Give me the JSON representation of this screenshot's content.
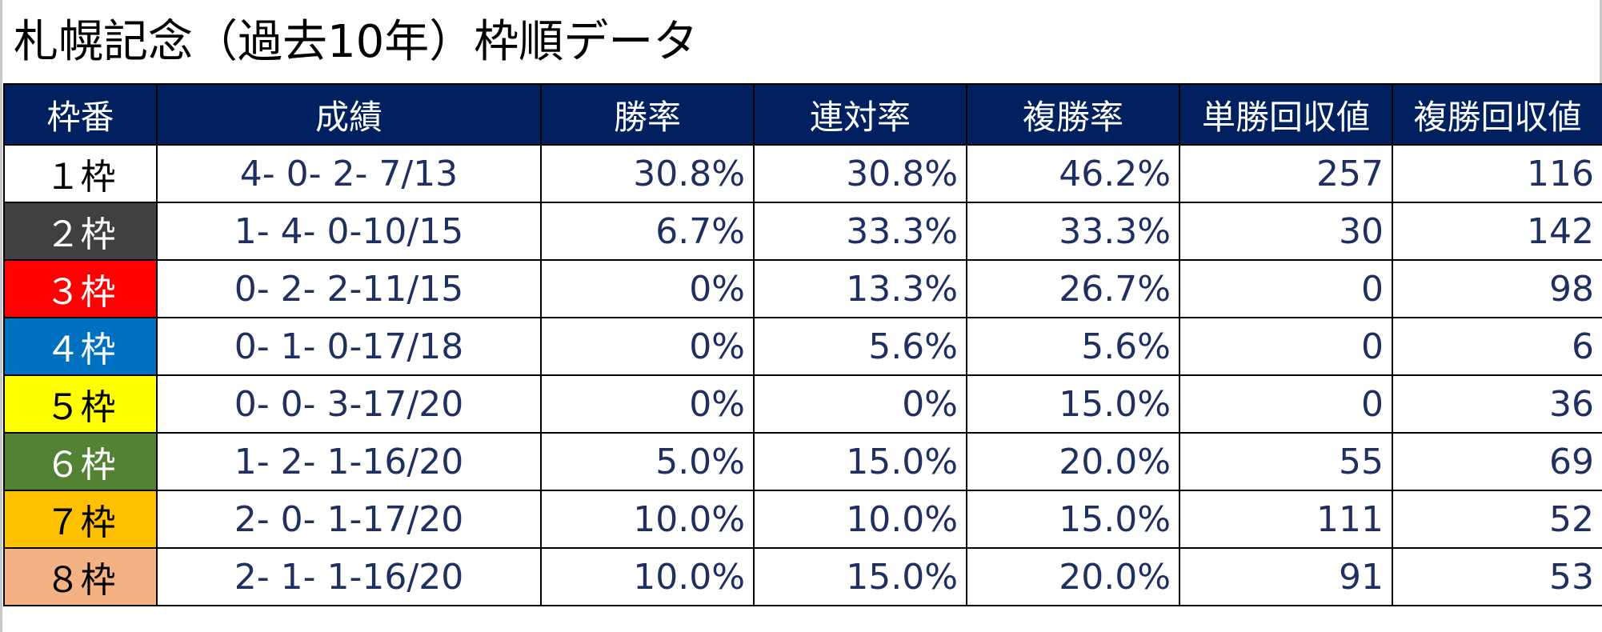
{
  "title": "札幌記念（過去10年）枠順データ",
  "table": {
    "headers": [
      "枠番",
      "成績",
      "勝率",
      "連対率",
      "複勝率",
      "単勝回収値",
      "複勝回収値"
    ],
    "rows": [
      {
        "waku": "１枠",
        "record": "4- 0- 2- 7/13",
        "win_rate": "30.8%",
        "rentai_rate": "30.8%",
        "fukusho_rate": "46.2%",
        "tansho_return": "257",
        "fukusho_return": "116"
      },
      {
        "waku": "２枠",
        "record": "1- 4- 0-10/15",
        "win_rate": "6.7%",
        "rentai_rate": "33.3%",
        "fukusho_rate": "33.3%",
        "tansho_return": "30",
        "fukusho_return": "142"
      },
      {
        "waku": "３枠",
        "record": "0- 2- 2-11/15",
        "win_rate": "0%",
        "rentai_rate": "13.3%",
        "fukusho_rate": "26.7%",
        "tansho_return": "0",
        "fukusho_return": "98"
      },
      {
        "waku": "４枠",
        "record": "0- 1- 0-17/18",
        "win_rate": "0%",
        "rentai_rate": "5.6%",
        "fukusho_rate": "5.6%",
        "tansho_return": "0",
        "fukusho_return": "6"
      },
      {
        "waku": "５枠",
        "record": "0- 0- 3-17/20",
        "win_rate": "0%",
        "rentai_rate": "0%",
        "fukusho_rate": "15.0%",
        "tansho_return": "0",
        "fukusho_return": "36"
      },
      {
        "waku": "６枠",
        "record": "1- 2- 1-16/20",
        "win_rate": "5.0%",
        "rentai_rate": "15.0%",
        "fukusho_rate": "20.0%",
        "tansho_return": "55",
        "fukusho_return": "69"
      },
      {
        "waku": "７枠",
        "record": "2- 0- 1-17/20",
        "win_rate": "10.0%",
        "rentai_rate": "10.0%",
        "fukusho_rate": "15.0%",
        "tansho_return": "111",
        "fukusho_return": "52"
      },
      {
        "waku": "８枠",
        "record": "2- 1- 1-16/20",
        "win_rate": "10.0%",
        "rentai_rate": "15.0%",
        "fukusho_rate": "20.0%",
        "tansho_return": "91",
        "fukusho_return": "53"
      }
    ]
  },
  "colors": {
    "header_bg": "#002060",
    "header_text": "#ffffff",
    "cell_text": "#1f2f5f",
    "waku_1": "#ffffff",
    "waku_2": "#404040",
    "waku_3": "#ff0000",
    "waku_4": "#0070c0",
    "waku_5": "#ffff00",
    "waku_6": "#548235",
    "waku_7": "#ffc000",
    "waku_8": "#f4b183"
  }
}
